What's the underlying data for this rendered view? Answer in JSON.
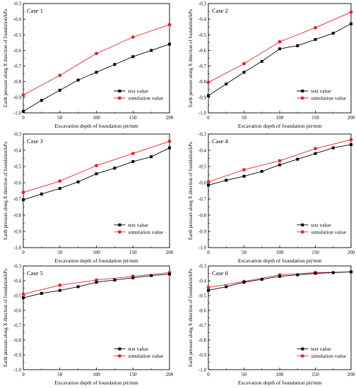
{
  "chart_data": [
    {
      "type": "line",
      "title": "Case 1",
      "xlabel": "Excavation depth of foundation pit/mm",
      "ylabel": "Earth pressure along X direction of foundation/kPa",
      "xlim": [
        0,
        200
      ],
      "ylim": [
        -1.0,
        -0.3
      ],
      "xticks": [
        0,
        50,
        100,
        150,
        200
      ],
      "yticks": [
        -1.0,
        -0.9,
        -0.8,
        -0.7,
        -0.6,
        -0.5,
        -0.4,
        -0.3
      ],
      "ytick_labels": [
        "-1.0",
        "-0.9",
        "-0.8",
        "-0.7",
        "-0.6",
        "-0.5",
        "-0.4",
        "-0.3"
      ],
      "legend": "bottom-right",
      "series": [
        {
          "name": "test value",
          "color": "#000000",
          "marker": "square",
          "x": [
            0,
            25,
            50,
            75,
            100,
            125,
            150,
            175,
            200
          ],
          "y": [
            -0.99,
            -0.92,
            -0.855,
            -0.79,
            -0.74,
            -0.69,
            -0.64,
            -0.6,
            -0.56
          ]
        },
        {
          "name": "simulation value",
          "color": "#e8202a",
          "marker": "circle",
          "x": [
            0,
            50,
            100,
            150,
            200
          ],
          "y": [
            -0.885,
            -0.76,
            -0.62,
            -0.515,
            -0.435
          ]
        }
      ]
    },
    {
      "type": "line",
      "title": "Case 2",
      "xlabel": "Excavation depth of foundation pit/mm",
      "ylabel": "Earth pressure along X direction of foundation/kPa",
      "xlim": [
        0,
        200
      ],
      "ylim": [
        -1.0,
        -0.3
      ],
      "xticks": [
        0,
        50,
        100,
        150,
        200
      ],
      "yticks": [
        -1.0,
        -0.9,
        -0.8,
        -0.7,
        -0.6,
        -0.5,
        -0.4,
        -0.3
      ],
      "ytick_labels": [
        "-1.0",
        "-0.9",
        "-0.8",
        "-0.7",
        "-0.6",
        "-0.5",
        "-0.4",
        "-0.3"
      ],
      "legend": "bottom-right",
      "series": [
        {
          "name": "test value",
          "color": "#000000",
          "marker": "square",
          "x": [
            0,
            25,
            50,
            75,
            100,
            125,
            150,
            175,
            200
          ],
          "y": [
            -0.89,
            -0.815,
            -0.74,
            -0.67,
            -0.59,
            -0.57,
            -0.53,
            -0.49,
            -0.43
          ]
        },
        {
          "name": "simulation value",
          "color": "#e8202a",
          "marker": "circle",
          "x": [
            0,
            50,
            100,
            150,
            200
          ],
          "y": [
            -0.805,
            -0.685,
            -0.545,
            -0.455,
            -0.355
          ]
        }
      ]
    },
    {
      "type": "line",
      "title": "Case 3",
      "xlabel": "Excavation depth of foundation pit/mm",
      "ylabel": "Earth pressure along X direction of foundation/kPa",
      "xlim": [
        0,
        200
      ],
      "ylim": [
        -1.0,
        -0.3
      ],
      "xticks": [
        0,
        50,
        100,
        150,
        200
      ],
      "yticks": [
        -1.0,
        -0.9,
        -0.8,
        -0.7,
        -0.6,
        -0.5,
        -0.4,
        -0.3
      ],
      "ytick_labels": [
        "-1.0",
        "-0.9",
        "-0.8",
        "-0.7",
        "-0.6",
        "-0.5",
        "-0.4",
        "-0.3"
      ],
      "legend": "bottom-right",
      "series": [
        {
          "name": "test value",
          "color": "#000000",
          "marker": "square",
          "x": [
            0,
            25,
            50,
            75,
            100,
            125,
            150,
            175,
            200
          ],
          "y": [
            -0.705,
            -0.67,
            -0.635,
            -0.595,
            -0.545,
            -0.51,
            -0.47,
            -0.44,
            -0.385
          ]
        },
        {
          "name": "simulation value",
          "color": "#e8202a",
          "marker": "circle",
          "x": [
            0,
            50,
            100,
            150,
            200
          ],
          "y": [
            -0.66,
            -0.59,
            -0.495,
            -0.42,
            -0.345
          ]
        }
      ]
    },
    {
      "type": "line",
      "title": "Case 4",
      "xlabel": "Excavation depth of foundation pit/mm",
      "ylabel": "Earth pressure along X direction of foundation/kPa",
      "xlim": [
        0,
        200
      ],
      "ylim": [
        -1.0,
        -0.3
      ],
      "xticks": [
        0,
        50,
        100,
        150,
        200
      ],
      "yticks": [
        -1.0,
        -0.9,
        -0.8,
        -0.7,
        -0.6,
        -0.5,
        -0.4,
        -0.3
      ],
      "ytick_labels": [
        "-1.0",
        "-0.9",
        "-0.8",
        "-0.7",
        "-0.6",
        "-0.5",
        "-0.4",
        "-0.3"
      ],
      "legend": "bottom-right",
      "series": [
        {
          "name": "test value",
          "color": "#000000",
          "marker": "square",
          "x": [
            0,
            25,
            50,
            75,
            100,
            125,
            150,
            175,
            200
          ],
          "y": [
            -0.615,
            -0.585,
            -0.56,
            -0.53,
            -0.49,
            -0.455,
            -0.42,
            -0.385,
            -0.365
          ]
        },
        {
          "name": "simulation value",
          "color": "#e8202a",
          "marker": "circle",
          "x": [
            0,
            50,
            100,
            150,
            200
          ],
          "y": [
            -0.595,
            -0.52,
            -0.465,
            -0.39,
            -0.335
          ]
        }
      ]
    },
    {
      "type": "line",
      "title": "Case 5",
      "xlabel": "Excavation depth of foundation pit/mm",
      "ylabel": "Earth pressure along X direction of foundation/kPa",
      "xlim": [
        0,
        200
      ],
      "ylim": [
        -1.0,
        -0.3
      ],
      "xticks": [
        0,
        50,
        100,
        150,
        200
      ],
      "yticks": [
        -1.0,
        -0.9,
        -0.8,
        -0.7,
        -0.6,
        -0.5,
        -0.4,
        -0.3
      ],
      "ytick_labels": [
        "-1.0",
        "-0.9",
        "-0.8",
        "-0.7",
        "-0.6",
        "-0.5",
        "-0.4",
        "-0.3"
      ],
      "legend": "bottom-right",
      "series": [
        {
          "name": "test value",
          "color": "#000000",
          "marker": "square",
          "x": [
            0,
            25,
            50,
            75,
            100,
            125,
            150,
            175,
            200
          ],
          "y": [
            -0.515,
            -0.485,
            -0.465,
            -0.44,
            -0.41,
            -0.395,
            -0.38,
            -0.365,
            -0.355
          ]
        },
        {
          "name": "simulation value",
          "color": "#e8202a",
          "marker": "circle",
          "x": [
            0,
            50,
            100,
            150,
            200
          ],
          "y": [
            -0.49,
            -0.43,
            -0.395,
            -0.37,
            -0.345
          ]
        }
      ]
    },
    {
      "type": "line",
      "title": "Case 6",
      "xlabel": "Excavation depth of foundation pit/mm",
      "ylabel": "Earth pressure along X direction of foundation/kPa",
      "xlim": [
        0,
        200
      ],
      "ylim": [
        -1.0,
        -0.3
      ],
      "xticks": [
        0,
        50,
        100,
        150,
        200
      ],
      "yticks": [
        -1.0,
        -0.9,
        -0.8,
        -0.7,
        -0.6,
        -0.5,
        -0.4,
        -0.3
      ],
      "ytick_labels": [
        "-1.0",
        "-0.9",
        "-0.8",
        "-0.7",
        "-0.6",
        "-0.5",
        "-0.4",
        "-0.3"
      ],
      "legend": "bottom-right",
      "series": [
        {
          "name": "test value",
          "color": "#000000",
          "marker": "square",
          "x": [
            0,
            25,
            50,
            75,
            100,
            125,
            150,
            175,
            200
          ],
          "y": [
            -0.465,
            -0.44,
            -0.41,
            -0.39,
            -0.37,
            -0.36,
            -0.35,
            -0.345,
            -0.34
          ]
        },
        {
          "name": "simulation value",
          "color": "#e8202a",
          "marker": "circle",
          "x": [
            0,
            50,
            100,
            150,
            200
          ],
          "y": [
            -0.445,
            -0.405,
            -0.36,
            -0.345,
            -0.34
          ]
        }
      ]
    }
  ]
}
